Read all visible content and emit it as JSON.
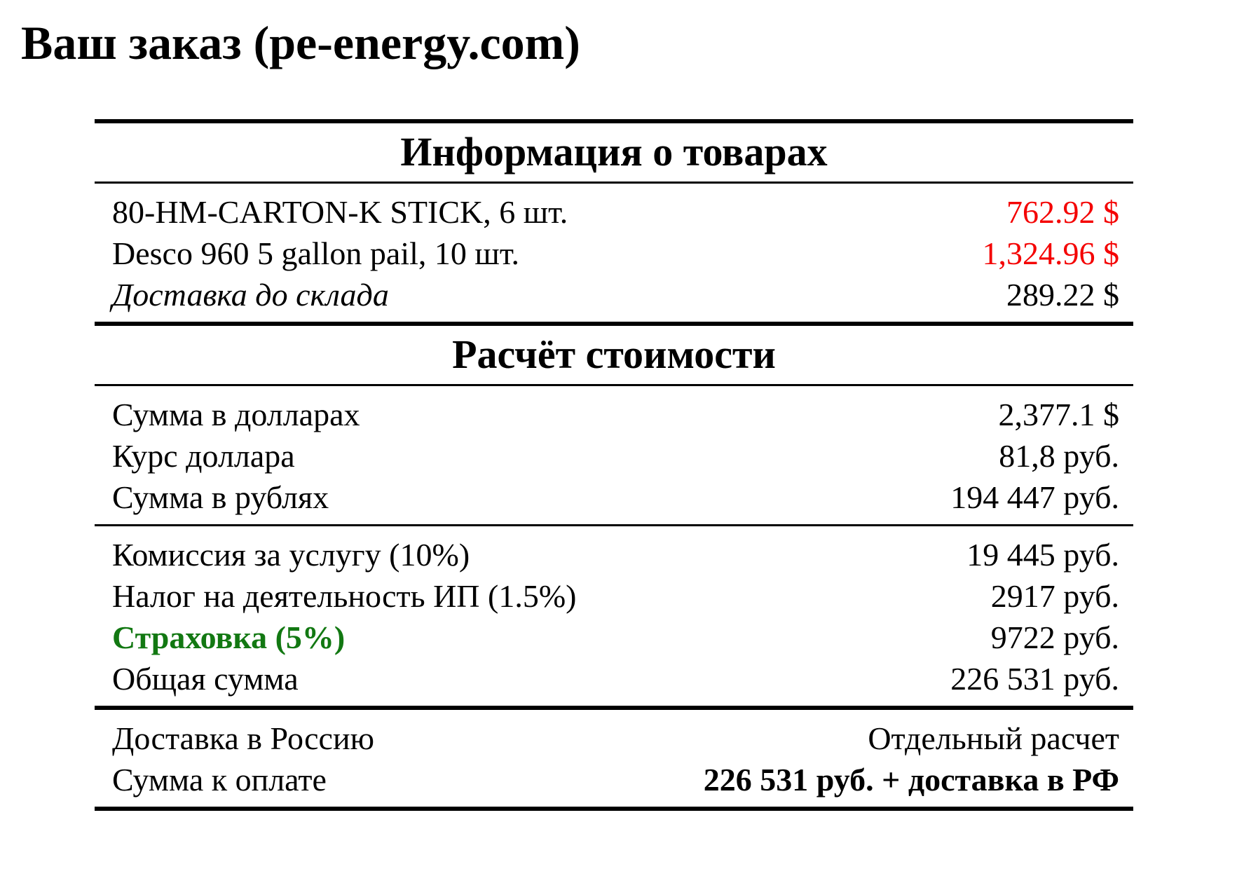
{
  "title": "Ваш заказ (pe-energy.com)",
  "colors": {
    "background": "#ffffff",
    "text": "#000000",
    "price_red": "#f40000",
    "insurance_green": "#127812"
  },
  "table": {
    "products_header": "Информация о товарах",
    "products": [
      {
        "label": "80-HM-CARTON-K STICK, 6 шт.",
        "value": "762.92 $"
      },
      {
        "label": "Desco 960 5 gallon pail, 10 шт.",
        "value": "1,324.96 $"
      },
      {
        "label": "Доставка до склада",
        "value": "289.22 $"
      }
    ],
    "calc_header": "Расчёт стоимости",
    "calc_totals": [
      {
        "label": "Сумма в долларах",
        "value": "2,377.1 $"
      },
      {
        "label": "Курс доллара",
        "value": "81,8 руб."
      },
      {
        "label": "Сумма в рублях",
        "value": "194 447 руб."
      }
    ],
    "calc_fees": [
      {
        "label": "Комиссия за услугу (10%)",
        "value": "19 445 руб."
      },
      {
        "label": "Налог на деятельность ИП (1.5%)",
        "value": "2917 руб."
      },
      {
        "label": "Страховка (5%)",
        "value": "9722 руб."
      },
      {
        "label": "Общая сумма",
        "value": "226 531 руб."
      }
    ],
    "payment": [
      {
        "label": "Доставка в Россию",
        "value": "Отдельный расчет"
      },
      {
        "label": "Сумма к оплате",
        "value": "226 531 руб. + доставка в РФ"
      }
    ]
  }
}
